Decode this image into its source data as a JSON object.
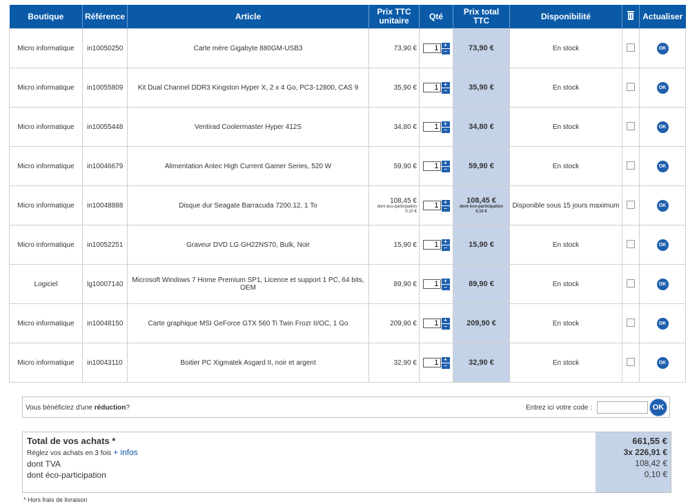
{
  "headers": {
    "shop": "Boutique",
    "reference": "Référence",
    "article": "Article",
    "unit_price": "Prix TTC unitaire",
    "qty": "Qté",
    "total_price": "Prix total TTC",
    "availability": "Disponibilité",
    "delete_icon": "trash-icon",
    "refresh": "Actualiser"
  },
  "rows": [
    {
      "shop": "Micro informatique",
      "ref": "in10050250",
      "article": "Carte mère Gigabyte 880GM-USB3",
      "unit_price": "73,90 €",
      "qty": "1",
      "total": "73,90 €",
      "availability": "En stock"
    },
    {
      "shop": "Micro informatique",
      "ref": "in10055809",
      "article": "Kit Dual Channel DDR3 Kingston Hyper X, 2 x 4 Go, PC3-12800, CAS 9",
      "unit_price": "35,90 €",
      "qty": "1",
      "total": "35,90 €",
      "availability": "En stock"
    },
    {
      "shop": "Micro informatique",
      "ref": "in10055448",
      "article": "Ventirad Coolermaster Hyper 412S",
      "unit_price": "34,80 €",
      "qty": "1",
      "total": "34,80 €",
      "availability": "En stock"
    },
    {
      "shop": "Micro informatique",
      "ref": "in10046679",
      "article": "Alimentation Antec High Current Gamer Series, 520 W",
      "unit_price": "59,90 €",
      "qty": "1",
      "total": "59,90 €",
      "availability": "En stock"
    },
    {
      "shop": "Micro informatique",
      "ref": "in10048888",
      "article": "Disque dur Seagate Barracuda 7200.12, 1 To",
      "unit_price": "108,45 €",
      "eco_label": "dont éco-participation",
      "eco_value": "0,10 €",
      "qty": "1",
      "total": "108,45 €",
      "total_eco_label": "dont éco-participation",
      "total_eco_value": "0,10 €",
      "availability": "Disponible sous 15 jours maximum"
    },
    {
      "shop": "Micro informatique",
      "ref": "in10052251",
      "article": "Graveur DVD LG GH22NS70, Bulk, Noir",
      "unit_price": "15,90 €",
      "qty": "1",
      "total": "15,90 €",
      "availability": "En stock"
    },
    {
      "shop": "Logiciel",
      "ref": "lg10007140",
      "article": "Microsoft Windows 7 Home Premium SP1, Licence et support 1 PC, 64 bits, OEM",
      "unit_price": "89,90 €",
      "qty": "1",
      "total": "89,90 €",
      "availability": "En stock"
    },
    {
      "shop": "Micro informatique",
      "ref": "in10048150",
      "article": "Carte graphique MSI GeForce GTX 560 Ti Twin Frozr II/OC, 1 Go",
      "unit_price": "209,90 €",
      "qty": "1",
      "total": "209,90 €",
      "availability": "En stock"
    },
    {
      "shop": "Micro informatique",
      "ref": "in10043110",
      "article": "Boitier PC Xigmatek Asgard II, noir et argent",
      "unit_price": "32,90 €",
      "qty": "1",
      "total": "32,90 €",
      "availability": "En stock"
    }
  ],
  "controls": {
    "plus": "+",
    "minus": "−",
    "ok": "OK"
  },
  "promo": {
    "text_before": "Vous bénéficiez d'une ",
    "text_bold": "réduction",
    "text_after": "?",
    "code_label": "Entrez ici votre code :",
    "code_value": "",
    "ok": "OK"
  },
  "totals": {
    "title": "Total de vos achats *",
    "installments_text": "Réglez vos achats en 3 fois ",
    "installments_link": "+ infos",
    "vat_label": "dont TVA",
    "eco_label": "dont éco-participation",
    "total_value": "661,55 €",
    "installments_value": "3x  226,91 €",
    "vat_value": "108,42 €",
    "eco_value": "0,10 €"
  },
  "footnote": "* Hors frais de livraison",
  "colors": {
    "header_bg": "#0a5aa8",
    "total_column_bg": "#c5d3e8",
    "button_blue": "#1f5fae"
  }
}
